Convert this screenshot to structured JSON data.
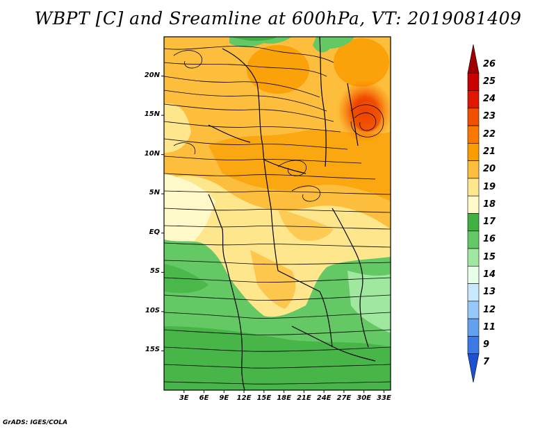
{
  "title": "WBPT [C] and Sreamline at 600hPa, VT: 2019081409",
  "credit": "GrADS: IGES/COLA",
  "map": {
    "lat_labels": [
      "20N",
      "15N",
      "10N",
      "5N",
      "EQ",
      "5S",
      "10S",
      "15S"
    ],
    "lat_values": [
      20,
      15,
      10,
      5,
      0,
      -5,
      -10,
      -15
    ],
    "lon_labels": [
      "3E",
      "6E",
      "9E",
      "12E",
      "15E",
      "18E",
      "21E",
      "24E",
      "27E",
      "30E",
      "33E"
    ],
    "lon_values": [
      3,
      6,
      9,
      12,
      15,
      18,
      21,
      24,
      27,
      30,
      33
    ],
    "lat_range": [
      -20,
      25
    ],
    "lon_range": [
      0,
      34
    ]
  },
  "colorbar": {
    "labels": [
      "26",
      "25",
      "24",
      "23",
      "22",
      "21",
      "20",
      "19",
      "18",
      "17",
      "16",
      "15",
      "14",
      "13",
      "12",
      "11",
      "9",
      "7"
    ],
    "colors": [
      "#a00000",
      "#c80000",
      "#e11600",
      "#f05000",
      "#f87800",
      "#fa9c00",
      "#fcbe3c",
      "#fde68c",
      "#fff8c8",
      "#40b040",
      "#64c864",
      "#a0e8a0",
      "#e8ffe8",
      "#c8e8ff",
      "#96c8fa",
      "#64a0f0",
      "#3c78e6",
      "#1e50d2"
    ]
  }
}
